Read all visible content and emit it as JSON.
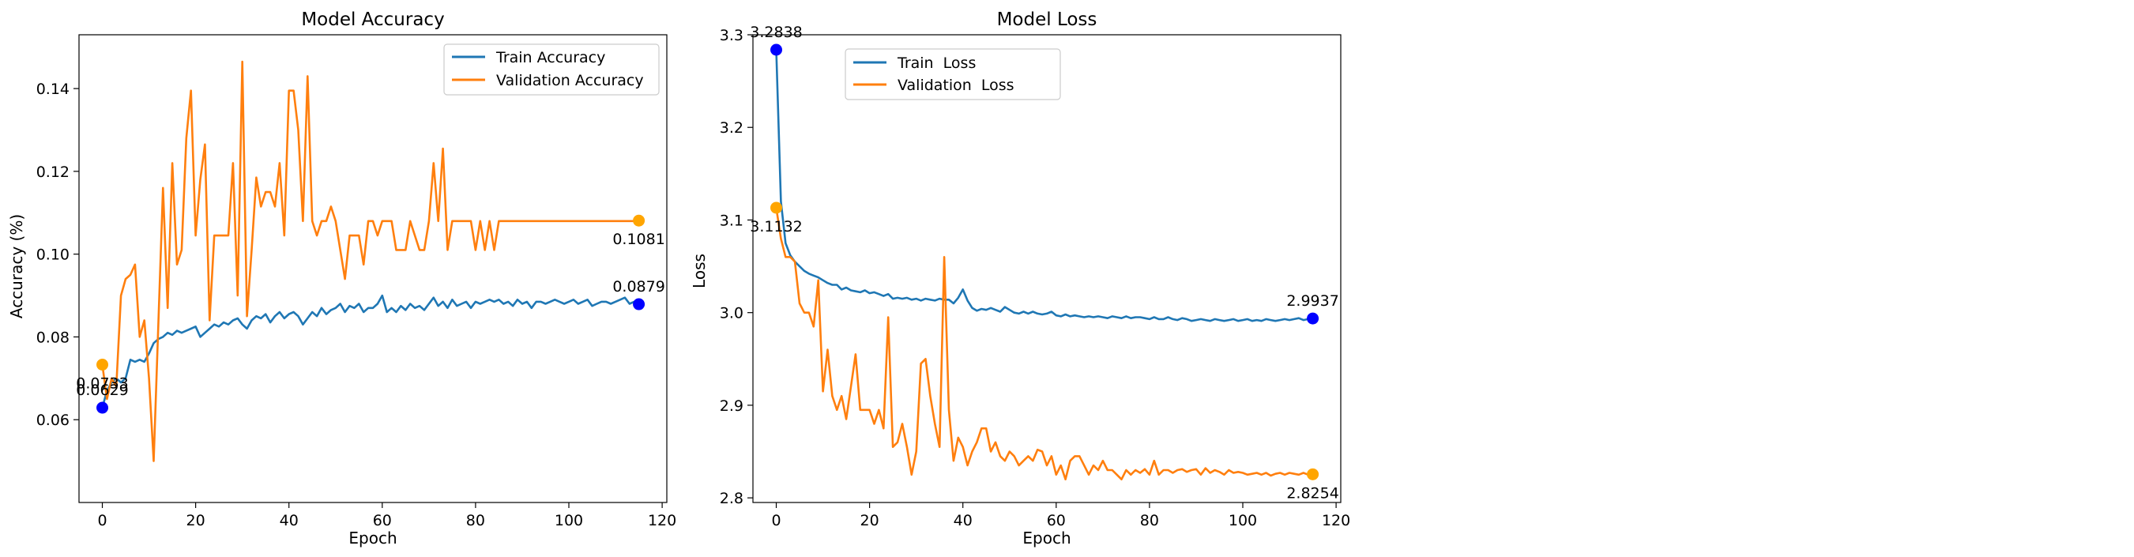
{
  "colors": {
    "train": "#1f77b4",
    "val": "#ff7f0e",
    "train_marker": "#0000ff",
    "val_marker": "#ffa500"
  },
  "chart_data": [
    {
      "type": "line",
      "title": "Model Accuracy",
      "xlabel": "Epoch",
      "ylabel": "Accuracy (%)",
      "xlim": [
        -5,
        121
      ],
      "ylim": [
        0.04,
        0.153
      ],
      "xticks": [
        0,
        20,
        40,
        60,
        80,
        100,
        120
      ],
      "yticks": [
        0.06,
        0.08,
        0.1,
        0.12,
        0.14
      ],
      "ytick_labels": [
        "0.06",
        "0.08",
        "0.10",
        "0.12",
        "0.14"
      ],
      "legend": "top-right",
      "series": [
        {
          "name": "Train Accuracy",
          "x_start": 0,
          "values": [
            0.0629,
            0.067,
            0.069,
            0.07,
            0.069,
            0.07,
            0.0745,
            0.074,
            0.0745,
            0.074,
            0.076,
            0.0785,
            0.0795,
            0.08,
            0.081,
            0.0805,
            0.0815,
            0.081,
            0.0815,
            0.082,
            0.0825,
            0.08,
            0.081,
            0.082,
            0.083,
            0.0825,
            0.0835,
            0.083,
            0.084,
            0.0845,
            0.083,
            0.082,
            0.084,
            0.085,
            0.0845,
            0.0855,
            0.0835,
            0.085,
            0.086,
            0.0845,
            0.0855,
            0.086,
            0.085,
            0.083,
            0.0845,
            0.086,
            0.085,
            0.087,
            0.0855,
            0.0865,
            0.087,
            0.088,
            0.086,
            0.0875,
            0.087,
            0.088,
            0.086,
            0.087,
            0.087,
            0.088,
            0.09,
            0.086,
            0.087,
            0.086,
            0.0875,
            0.0865,
            0.088,
            0.087,
            0.0875,
            0.0865,
            0.088,
            0.0895,
            0.0875,
            0.0885,
            0.087,
            0.089,
            0.0875,
            0.088,
            0.0885,
            0.087,
            0.0885,
            0.088,
            0.0885,
            0.089,
            0.0885,
            0.089,
            0.088,
            0.0885,
            0.0875,
            0.089,
            0.088,
            0.0885,
            0.087,
            0.0885,
            0.0885,
            0.088,
            0.0885,
            0.089,
            0.0885,
            0.088,
            0.0885,
            0.089,
            0.088,
            0.0885,
            0.089,
            0.0875,
            0.088,
            0.0885,
            0.0885,
            0.088,
            0.0885,
            0.089,
            0.0895,
            0.088,
            0.0885,
            0.0879
          ]
        },
        {
          "name": "Validation Accuracy",
          "x_start": 0,
          "values": [
            0.0733,
            0.065,
            0.07,
            0.068,
            0.09,
            0.094,
            0.095,
            0.0975,
            0.08,
            0.084,
            0.07,
            0.05,
            0.083,
            0.116,
            0.087,
            0.122,
            0.0975,
            0.101,
            0.128,
            0.1395,
            0.1045,
            0.118,
            0.1265,
            0.084,
            0.1045,
            0.1045,
            0.1045,
            0.1045,
            0.122,
            0.09,
            0.1465,
            0.085,
            0.101,
            0.1185,
            0.1115,
            0.115,
            0.115,
            0.1115,
            0.122,
            0.1045,
            0.1395,
            0.1395,
            0.13,
            0.108,
            0.143,
            0.108,
            0.1045,
            0.108,
            0.108,
            0.1115,
            0.108,
            0.101,
            0.094,
            0.1045,
            0.1045,
            0.1045,
            0.0975,
            0.108,
            0.108,
            0.1045,
            0.108,
            0.108,
            0.108,
            0.101,
            0.101,
            0.101,
            0.108,
            0.1045,
            0.101,
            0.101,
            0.108,
            0.122,
            0.108,
            0.1255,
            0.101,
            0.108,
            0.108,
            0.108,
            0.108,
            0.108,
            0.101,
            0.108,
            0.101,
            0.108,
            0.101,
            0.108,
            0.108,
            0.108,
            0.108,
            0.108,
            0.108,
            0.108,
            0.108,
            0.108,
            0.108,
            0.108,
            0.108,
            0.108,
            0.108,
            0.108,
            0.108,
            0.108,
            0.108,
            0.108,
            0.108,
            0.108,
            0.108,
            0.108,
            0.108,
            0.108,
            0.108,
            0.108,
            0.108,
            0.108,
            0.108,
            0.1081
          ]
        }
      ],
      "annotations": [
        {
          "series": 0,
          "at": "first",
          "label": "0.0629",
          "pos": "above"
        },
        {
          "series": 1,
          "at": "first",
          "label": "0.0733",
          "pos": "below"
        },
        {
          "series": 0,
          "at": "last",
          "label": "0.0879",
          "pos": "above"
        },
        {
          "series": 1,
          "at": "last",
          "label": "0.1081",
          "pos": "below"
        }
      ]
    },
    {
      "type": "line",
      "title": "Model Loss",
      "xlabel": "Epoch",
      "ylabel": "Loss",
      "xlim": [
        -5,
        121
      ],
      "ylim": [
        2.795,
        3.3
      ],
      "xticks": [
        0,
        20,
        40,
        60,
        80,
        100,
        120
      ],
      "yticks": [
        2.8,
        2.9,
        3.0,
        3.1,
        3.2,
        3.3
      ],
      "ytick_labels": [
        "2.8",
        "2.9",
        "3.0",
        "3.1",
        "3.2",
        "3.3"
      ],
      "legend": "upper-center",
      "series": [
        {
          "name": "Train  Loss",
          "x_start": 0,
          "values": [
            3.2838,
            3.12,
            3.075,
            3.062,
            3.055,
            3.05,
            3.045,
            3.042,
            3.04,
            3.038,
            3.035,
            3.032,
            3.03,
            3.03,
            3.025,
            3.027,
            3.024,
            3.023,
            3.022,
            3.024,
            3.021,
            3.022,
            3.02,
            3.018,
            3.02,
            3.015,
            3.016,
            3.015,
            3.016,
            3.014,
            3.015,
            3.013,
            3.015,
            3.014,
            3.013,
            3.015,
            3.014,
            3.014,
            3.01,
            3.016,
            3.025,
            3.013,
            3.005,
            3.002,
            3.004,
            3.003,
            3.005,
            3.003,
            3.001,
            3.006,
            3.003,
            3.0,
            2.999,
            3.001,
            2.999,
            3.001,
            2.999,
            2.998,
            2.999,
            3.001,
            2.997,
            2.996,
            2.998,
            2.996,
            2.997,
            2.996,
            2.995,
            2.996,
            2.995,
            2.996,
            2.995,
            2.994,
            2.996,
            2.995,
            2.994,
            2.996,
            2.994,
            2.995,
            2.995,
            2.994,
            2.993,
            2.995,
            2.993,
            2.993,
            2.995,
            2.993,
            2.992,
            2.994,
            2.993,
            2.991,
            2.992,
            2.993,
            2.992,
            2.991,
            2.993,
            2.992,
            2.991,
            2.992,
            2.993,
            2.991,
            2.992,
            2.993,
            2.991,
            2.992,
            2.991,
            2.993,
            2.992,
            2.991,
            2.992,
            2.993,
            2.992,
            2.993,
            2.994,
            2.992,
            2.993,
            2.9937
          ]
        },
        {
          "name": "Validation  Loss",
          "x_start": 0,
          "values": [
            3.1132,
            3.08,
            3.06,
            3.06,
            3.055,
            3.01,
            3.0,
            3.0,
            2.985,
            3.035,
            2.915,
            2.96,
            2.91,
            2.895,
            2.91,
            2.885,
            2.92,
            2.955,
            2.895,
            2.895,
            2.895,
            2.88,
            2.895,
            2.875,
            2.995,
            2.855,
            2.86,
            2.88,
            2.855,
            2.825,
            2.85,
            2.945,
            2.95,
            2.91,
            2.88,
            2.855,
            3.06,
            2.895,
            2.84,
            2.865,
            2.855,
            2.835,
            2.85,
            2.86,
            2.875,
            2.875,
            2.85,
            2.86,
            2.845,
            2.84,
            2.85,
            2.845,
            2.835,
            2.84,
            2.845,
            2.84,
            2.852,
            2.85,
            2.835,
            2.845,
            2.825,
            2.835,
            2.82,
            2.84,
            2.845,
            2.845,
            2.835,
            2.825,
            2.835,
            2.83,
            2.84,
            2.83,
            2.83,
            2.825,
            2.82,
            2.83,
            2.825,
            2.83,
            2.827,
            2.831,
            2.825,
            2.84,
            2.825,
            2.83,
            2.83,
            2.827,
            2.83,
            2.831,
            2.828,
            2.83,
            2.831,
            2.825,
            2.832,
            2.827,
            2.83,
            2.828,
            2.825,
            2.83,
            2.827,
            2.828,
            2.827,
            2.825,
            2.826,
            2.827,
            2.825,
            2.827,
            2.824,
            2.826,
            2.827,
            2.825,
            2.827,
            2.826,
            2.825,
            2.827,
            2.825,
            2.8254
          ]
        }
      ],
      "annotations": [
        {
          "series": 0,
          "at": "first",
          "label": "3.2838",
          "pos": "above"
        },
        {
          "series": 1,
          "at": "first",
          "label": "3.1132",
          "pos": "below"
        },
        {
          "series": 0,
          "at": "last",
          "label": "2.9937",
          "pos": "above"
        },
        {
          "series": 1,
          "at": "last",
          "label": "2.8254",
          "pos": "below"
        }
      ]
    }
  ]
}
